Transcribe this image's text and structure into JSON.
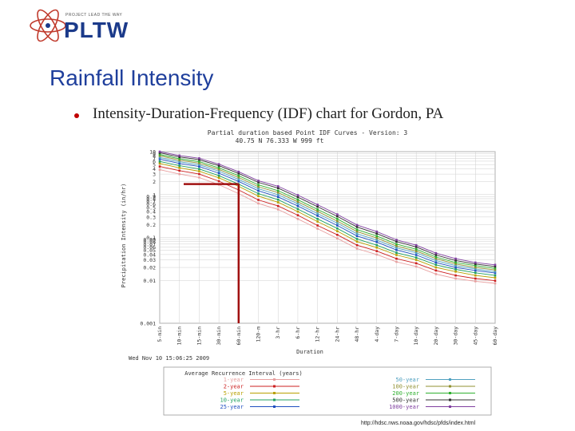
{
  "header": {
    "logo_tagline": "PROJECT LEAD THE WAY",
    "logo_wordmark": "PLTW"
  },
  "slide": {
    "title": "Rainfall Intensity",
    "bullet": "Intensity-Duration-Frequency (IDF) chart for Gordon, PA",
    "source_url": "http://hdsc.nws.noaa.gov/hdsc/pfds/index.html"
  },
  "colors": {
    "title_blue": "#1f3f9c",
    "bullet_red": "#c00000",
    "logo_blue": "#1b3a8a",
    "highlight_line": "#a01010"
  },
  "chart_data": {
    "type": "line",
    "title": "Partial duration based Point IDF Curves - Version: 3",
    "subtitle": "40.75 N 76.333 W 999 ft",
    "ylabel": "Precipitation Intensity (in/hr)",
    "xlabel": "Duration",
    "ylog": true,
    "ylim": [
      0.001,
      10
    ],
    "y_ticks": [
      "10",
      "9",
      "8",
      "7",
      "6",
      "5",
      "4",
      "3",
      "2",
      "1",
      "0.9",
      "0.8",
      "0.7",
      "0.6",
      "0.5",
      "0.4",
      "0.3",
      "0.2",
      "0.1",
      "0.09",
      "0.08",
      "0.07",
      "0.06",
      "0.05",
      "0.04",
      "0.03",
      "0.02",
      "0.01",
      "0.001"
    ],
    "categories": [
      "5-min",
      "10-min",
      "15-min",
      "30-min",
      "60-min",
      "120-m",
      "3-hr",
      "6-hr",
      "12-hr",
      "24-hr",
      "48-hr",
      "4-day",
      "7-day",
      "10-day",
      "20-day",
      "30-day",
      "45-day",
      "60-day"
    ],
    "timestamp": "Wed Nov 10 15:06:25 2009",
    "legend_title": "Average Recurrence Interval (years)",
    "series": [
      {
        "name": "1-year",
        "color": "#e8a0a0",
        "values": [
          3.8,
          3.0,
          2.5,
          1.7,
          1.05,
          0.62,
          0.45,
          0.27,
          0.16,
          0.095,
          0.055,
          0.04,
          0.027,
          0.021,
          0.014,
          0.011,
          0.0095,
          0.0085
        ]
      },
      {
        "name": "2-year",
        "color": "#cc2020",
        "values": [
          4.5,
          3.6,
          3.0,
          2.05,
          1.28,
          0.75,
          0.54,
          0.33,
          0.19,
          0.115,
          0.066,
          0.048,
          0.032,
          0.025,
          0.017,
          0.013,
          0.011,
          0.0098
        ]
      },
      {
        "name": "5-year",
        "color": "#b8a000",
        "values": [
          5.3,
          4.2,
          3.5,
          2.45,
          1.55,
          0.92,
          0.66,
          0.4,
          0.235,
          0.14,
          0.08,
          0.058,
          0.039,
          0.03,
          0.02,
          0.016,
          0.013,
          0.0115
        ]
      },
      {
        "name": "10-year",
        "color": "#20a060",
        "values": [
          5.9,
          4.7,
          3.95,
          2.75,
          1.75,
          1.05,
          0.76,
          0.46,
          0.27,
          0.162,
          0.092,
          0.066,
          0.044,
          0.034,
          0.023,
          0.018,
          0.015,
          0.013
        ]
      },
      {
        "name": "25-year",
        "color": "#2050c0",
        "values": [
          6.7,
          5.3,
          4.5,
          3.15,
          2.02,
          1.22,
          0.88,
          0.54,
          0.32,
          0.19,
          0.108,
          0.078,
          0.051,
          0.039,
          0.026,
          0.02,
          0.017,
          0.0148
        ]
      },
      {
        "name": "50-year",
        "color": "#50a0c0",
        "values": [
          7.3,
          5.8,
          4.95,
          3.5,
          2.25,
          1.37,
          0.99,
          0.61,
          0.36,
          0.215,
          0.122,
          0.087,
          0.057,
          0.044,
          0.029,
          0.022,
          0.0185,
          0.016
        ]
      },
      {
        "name": "100-year",
        "color": "#909030",
        "values": [
          8.0,
          6.3,
          5.4,
          3.85,
          2.5,
          1.52,
          1.11,
          0.68,
          0.405,
          0.24,
          0.137,
          0.097,
          0.063,
          0.048,
          0.032,
          0.024,
          0.02,
          0.0175
        ]
      },
      {
        "name": "200-year",
        "color": "#30b030",
        "values": [
          8.6,
          6.8,
          5.85,
          4.2,
          2.75,
          1.68,
          1.23,
          0.76,
          0.45,
          0.27,
          0.152,
          0.108,
          0.07,
          0.053,
          0.035,
          0.026,
          0.022,
          0.019
        ]
      },
      {
        "name": "500-year",
        "color": "#303030",
        "values": [
          9.4,
          7.5,
          6.5,
          4.7,
          3.1,
          1.92,
          1.41,
          0.87,
          0.52,
          0.31,
          0.175,
          0.123,
          0.08,
          0.06,
          0.039,
          0.029,
          0.024,
          0.021
        ]
      },
      {
        "name": "1000-year",
        "color": "#8040a0",
        "values": [
          10.0,
          8.1,
          7.0,
          5.1,
          3.4,
          2.1,
          1.56,
          0.97,
          0.58,
          0.345,
          0.195,
          0.137,
          0.088,
          0.066,
          0.043,
          0.032,
          0.026,
          0.023
        ]
      }
    ],
    "highlight": {
      "duration": "60-min",
      "value": 1.75
    }
  }
}
